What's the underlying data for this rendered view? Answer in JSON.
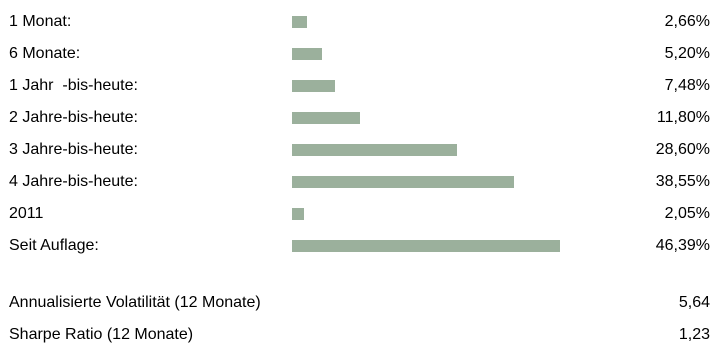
{
  "chart_data": {
    "type": "bar",
    "orientation": "horizontal",
    "categories": [
      "1 Monat:",
      "6 Monate:",
      "1 Jahr  -bis-heute:",
      "2 Jahre-bis-heute:",
      "3 Jahre-bis-heute:",
      "4 Jahre-bis-heute:",
      "2011",
      "Seit Auflage:"
    ],
    "values": [
      2.66,
      5.2,
      7.48,
      11.8,
      28.6,
      38.55,
      2.05,
      46.39
    ],
    "value_labels": [
      "2,66%",
      "5,20%",
      "7,48%",
      "11,80%",
      "28,60%",
      "38,55%",
      "2,05%",
      "46,39%"
    ],
    "xlim": [
      0,
      52
    ],
    "bar_color": "#9bb09c",
    "grid": false,
    "legend": "none"
  },
  "metrics": [
    {
      "label": "Annualisierte Volatilität (12 Monate)",
      "value": "5,64"
    },
    {
      "label": "Sharpe Ratio (12 Monate)",
      "value": "1,23"
    }
  ]
}
